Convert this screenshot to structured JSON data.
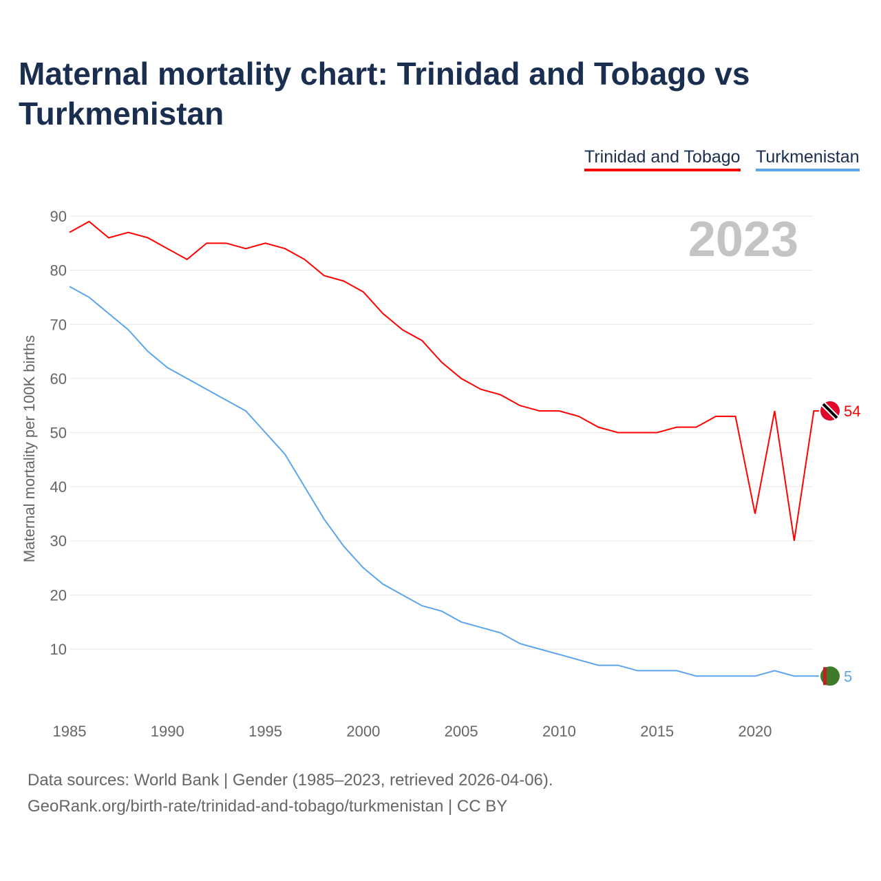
{
  "title": "Maternal mortality chart: Trinidad and Tobago vs Turkmenistan",
  "year_label": "2023",
  "footer": {
    "line1": "Data sources: World Bank | Gender (1985–2023, retrieved 2026-04-06).",
    "line2": "GeoRank.org/birth-rate/trinidad-and-tobago/turkmenistan | CC BY"
  },
  "chart_data": {
    "type": "line",
    "title": "Maternal mortality chart: Trinidad and Tobago vs Turkmenistan",
    "xlabel": "",
    "ylabel": "Maternal mortality per 100K births",
    "ylim": [
      0,
      90
    ],
    "xlim": [
      1985,
      2023
    ],
    "yticks": [
      "10",
      "20",
      "30",
      "40",
      "50",
      "60",
      "70",
      "80",
      "90"
    ],
    "xticks": [
      "1985",
      "1990",
      "1995",
      "2000",
      "2005",
      "2010",
      "2015",
      "2020"
    ],
    "legend": "top-right",
    "x": [
      1985,
      1986,
      1987,
      1988,
      1989,
      1990,
      1991,
      1992,
      1993,
      1994,
      1995,
      1996,
      1997,
      1998,
      1999,
      2000,
      2001,
      2002,
      2003,
      2004,
      2005,
      2006,
      2007,
      2008,
      2009,
      2010,
      2011,
      2012,
      2013,
      2014,
      2015,
      2016,
      2017,
      2018,
      2019,
      2020,
      2021,
      2022,
      2023
    ],
    "series": [
      {
        "name": "Trinidad and Tobago",
        "color": "#ff0000",
        "end_label": "54",
        "values": [
          87,
          89,
          86,
          87,
          86,
          84,
          82,
          85,
          85,
          84,
          85,
          84,
          82,
          79,
          78,
          76,
          72,
          69,
          67,
          63,
          60,
          58,
          57,
          55,
          54,
          54,
          53,
          51,
          50,
          50,
          50,
          51,
          51,
          53,
          53,
          35,
          54,
          30,
          54
        ]
      },
      {
        "name": "Turkmenistan",
        "color": "#5aa5ee",
        "end_label": "5",
        "values": [
          77,
          75,
          72,
          69,
          65,
          62,
          60,
          58,
          56,
          54,
          50,
          46,
          40,
          34,
          29,
          25,
          22,
          20,
          18,
          17,
          15,
          14,
          13,
          11,
          10,
          9,
          8,
          7,
          7,
          6,
          6,
          6,
          5,
          5,
          5,
          5,
          6,
          5,
          5
        ]
      }
    ]
  }
}
